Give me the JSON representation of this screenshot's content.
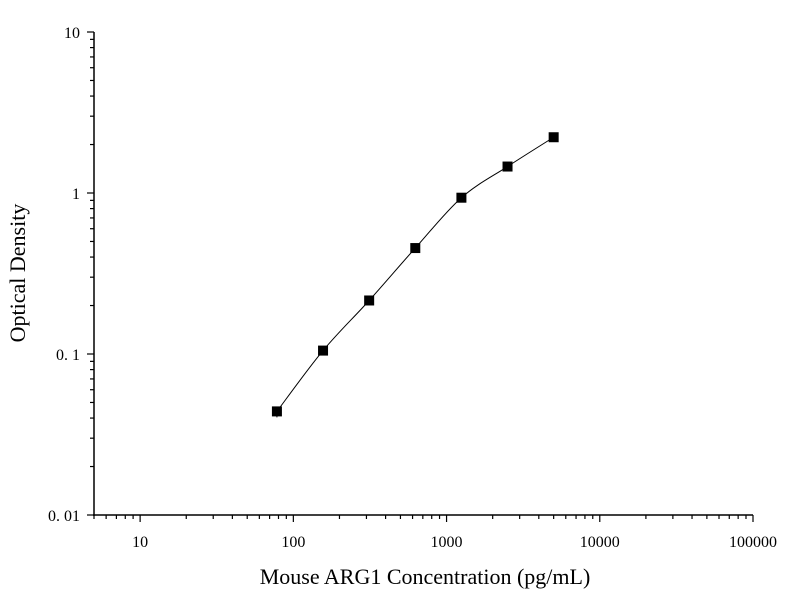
{
  "chart_data": {
    "type": "scatter",
    "title": "",
    "xlabel": "Mouse ARG1 Concentration (pg/mL)",
    "ylabel": "Optical Density",
    "xscale": "log",
    "yscale": "log",
    "xlim": [
      5,
      100000
    ],
    "ylim": [
      0.01,
      10
    ],
    "grid": false,
    "legend": "none",
    "x_ticks": [
      10,
      100,
      1000,
      10000,
      100000
    ],
    "x_tick_labels": [
      "10",
      "100",
      "1000",
      "10000",
      "100000"
    ],
    "y_ticks": [
      0.01,
      0.1,
      1,
      10
    ],
    "y_tick_labels": [
      "0. 01",
      "0. 1",
      "1",
      "10"
    ],
    "series": [
      {
        "x": [
          78.125,
          156.25,
          312.5,
          625,
          1250,
          2500,
          5000
        ],
        "y": [
          0.044,
          0.105,
          0.215,
          0.455,
          0.935,
          1.46,
          2.22
        ],
        "marker": "square",
        "line": "smooth-fit"
      }
    ],
    "colors": {
      "marker": "#000000",
      "line": "#000000",
      "axis": "#000000"
    }
  }
}
